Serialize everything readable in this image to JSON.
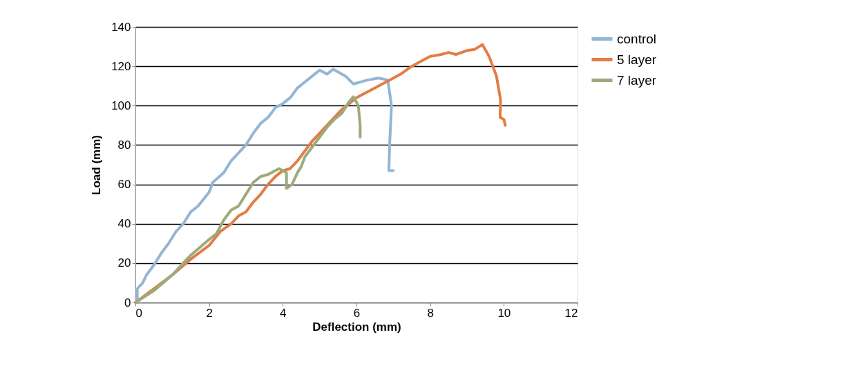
{
  "chart_data": {
    "type": "line",
    "xlabel": "Deflection (mm)",
    "ylabel": "Load (mm)",
    "xlim": [
      0,
      12
    ],
    "xticks": [
      0,
      2,
      4,
      6,
      8,
      10,
      12
    ],
    "ylim": [
      0,
      140
    ],
    "yticks": [
      0,
      20,
      40,
      60,
      80,
      100,
      120,
      140
    ],
    "grid": "y",
    "legend": "right",
    "marker": "none",
    "line_style": "solid",
    "series": [
      {
        "name": "control",
        "color": "#93b6d6",
        "x": [
          0.05,
          0.05,
          0.2,
          0.3,
          0.5,
          0.7,
          0.9,
          1.1,
          1.3,
          1.5,
          1.7,
          2.0,
          2.1,
          2.4,
          2.6,
          2.8,
          3.0,
          3.2,
          3.4,
          3.6,
          3.8,
          4.0,
          4.2,
          4.4,
          4.6,
          4.8,
          5.0,
          5.2,
          5.37,
          5.7,
          5.92,
          6.3,
          6.6,
          6.85,
          6.95,
          6.9,
          6.88,
          7.0
        ],
        "values": [
          0,
          7,
          10,
          14,
          19,
          25,
          30,
          36,
          40,
          46,
          49,
          56,
          61,
          66,
          72,
          76,
          80,
          86,
          91,
          94,
          99,
          101,
          104,
          109,
          112,
          115,
          118,
          116,
          118.5,
          115,
          111,
          113,
          114,
          113,
          100,
          80,
          67,
          67
        ]
      },
      {
        "name": "5 layer",
        "color": "#e27d44",
        "x": [
          0,
          0.5,
          1,
          1.5,
          2,
          2.3,
          2.6,
          2.8,
          3,
          3.2,
          3.4,
          3.6,
          3.8,
          4.0,
          4.2,
          4.4,
          4.6,
          4.8,
          5.0,
          5.2,
          5.4,
          5.6,
          5.8,
          6.0,
          6.3,
          6.6,
          6.9,
          7.2,
          7.5,
          7.8,
          8.0,
          8.3,
          8.5,
          8.7,
          9.0,
          9.2,
          9.42,
          9.6,
          9.8,
          9.91,
          9.9,
          10.0,
          10.04
        ],
        "values": [
          0,
          7,
          14,
          22,
          29,
          36,
          40,
          44,
          46,
          51,
          55,
          60,
          64,
          67,
          68,
          72,
          77,
          82,
          86,
          90,
          94,
          98,
          101,
          104,
          107,
          110,
          113,
          116,
          120,
          123,
          125,
          126,
          127,
          126,
          128,
          128.5,
          131,
          125,
          115,
          103,
          94,
          93,
          90
        ]
      },
      {
        "name": "7 layer",
        "color": "#9bab7c",
        "x": [
          0,
          0.5,
          1,
          1.5,
          2,
          2.2,
          2.4,
          2.6,
          2.8,
          3.0,
          3.2,
          3.4,
          3.6,
          3.8,
          3.9,
          4.1,
          4.1,
          4.25,
          4.4,
          4.5,
          4.6,
          4.8,
          5.0,
          5.2,
          5.4,
          5.6,
          5.8,
          5.92,
          6.05,
          6.1,
          6.1
        ],
        "values": [
          0,
          6,
          14,
          24,
          32,
          35,
          42,
          47,
          49,
          55,
          61,
          64,
          65,
          67,
          68,
          66,
          58,
          60,
          66,
          69,
          74,
          79,
          84,
          89,
          93,
          96,
          102,
          104.5,
          100,
          90,
          84
        ]
      }
    ]
  }
}
